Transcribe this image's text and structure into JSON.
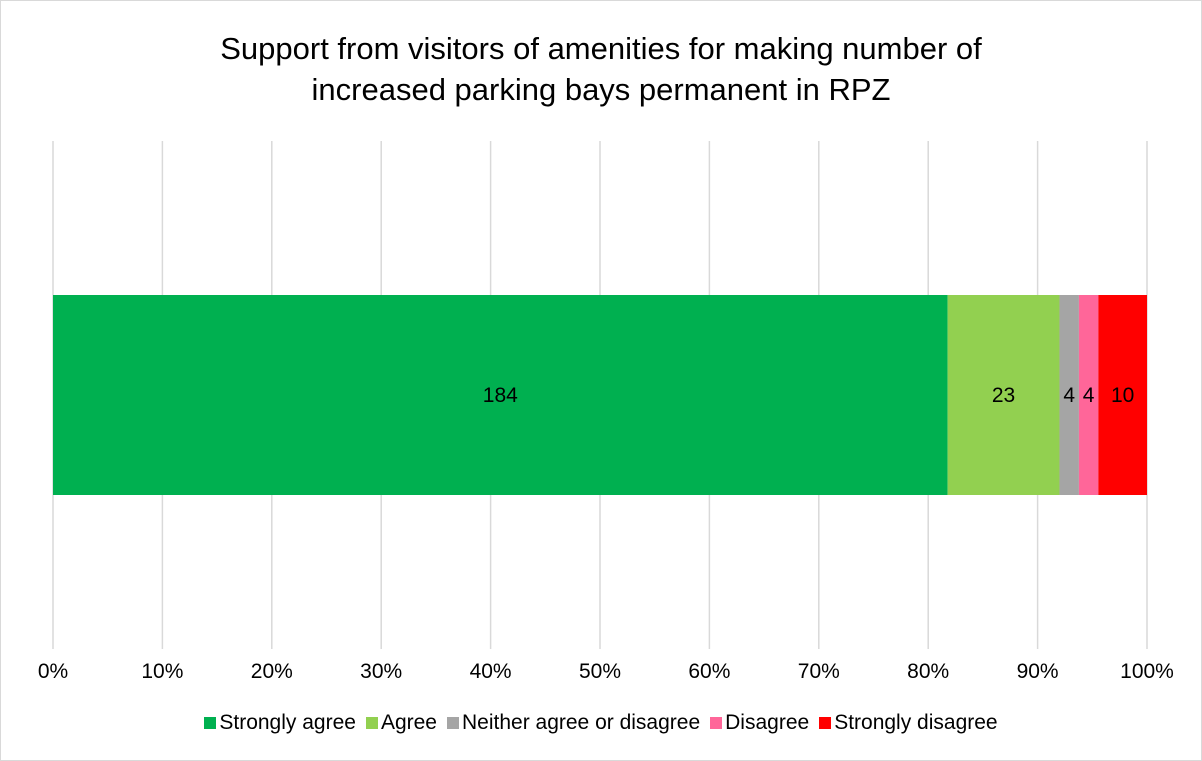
{
  "chart_data": {
    "type": "bar",
    "orientation": "horizontal",
    "stacked": "100%",
    "title": "Support from visitors of amenities for making number of increased parking bays permanent in RPZ",
    "title_lines": [
      "Support from visitors of amenities for making number of",
      "increased parking bays permanent in RPZ"
    ],
    "x_ticks": [
      "0%",
      "10%",
      "20%",
      "30%",
      "40%",
      "50%",
      "60%",
      "70%",
      "80%",
      "90%",
      "100%"
    ],
    "xlim": [
      0,
      100
    ],
    "grid": true,
    "legend_position": "bottom",
    "series": [
      {
        "name": "Strongly agree",
        "values": [
          184
        ],
        "color": "#00b050"
      },
      {
        "name": "Agree",
        "values": [
          23
        ],
        "color": "#92d050"
      },
      {
        "name": "Neither agree or disagree",
        "values": [
          4
        ],
        "color": "#a5a5a5"
      },
      {
        "name": "Disagree",
        "values": [
          4
        ],
        "color": "#ff6699"
      },
      {
        "name": "Strongly disagree",
        "values": [
          10
        ],
        "color": "#ff0000"
      }
    ]
  }
}
